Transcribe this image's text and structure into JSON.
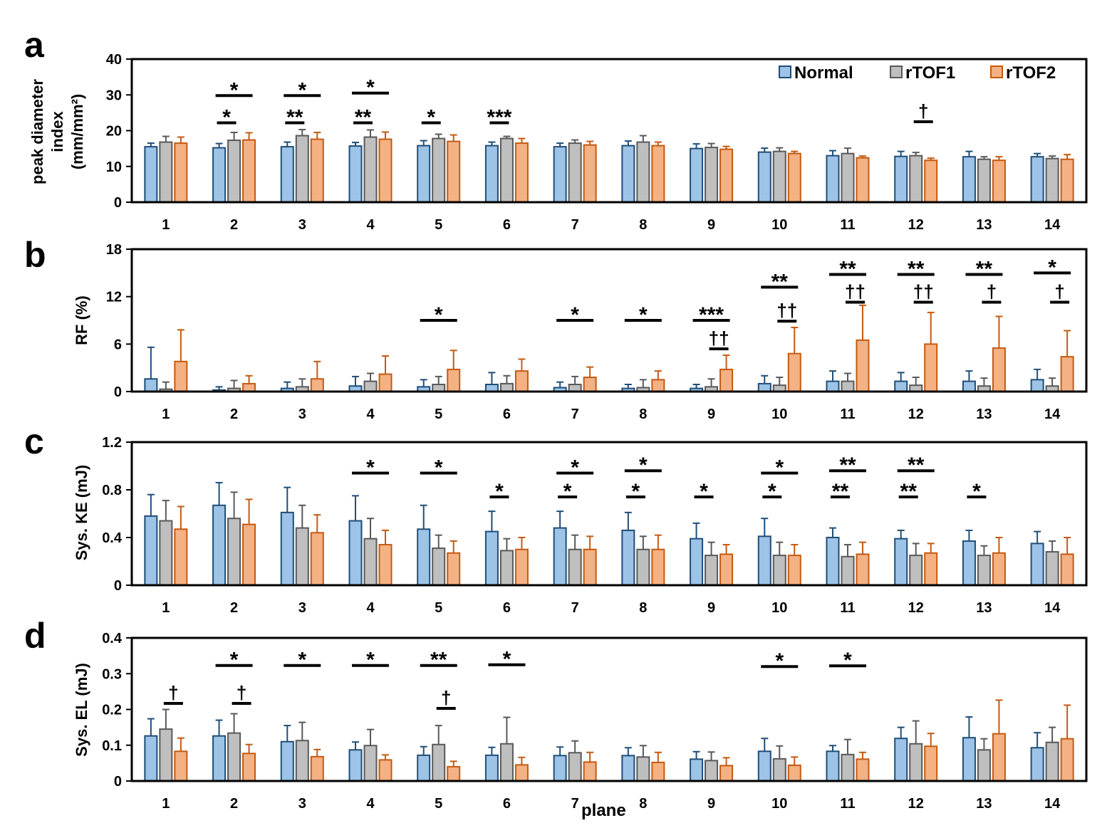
{
  "legend": [
    {
      "name": "Normal",
      "fill": "#9DC3E6",
      "stroke": "#1F4E79"
    },
    {
      "name": "rTOF1",
      "fill": "#BFBFBF",
      "stroke": "#595959"
    },
    {
      "name": "rTOF2",
      "fill": "#F4B183",
      "stroke": "#C55A11"
    }
  ],
  "x_title": "plane",
  "chart_data": [
    {
      "type": "bar",
      "panel_label": "a",
      "ylabel": [
        "peak diameter",
        "index",
        "(mm/mm²)"
      ],
      "ylim": [
        0,
        40
      ],
      "yticks": [
        "0",
        "10",
        "20",
        "30",
        "40"
      ],
      "categories": [
        "1",
        "2",
        "3",
        "4",
        "5",
        "6",
        "7",
        "8",
        "9",
        "10",
        "11",
        "12",
        "13",
        "14"
      ],
      "series": [
        {
          "name": "Normal",
          "values": [
            15.5,
            15.2,
            15.5,
            15.7,
            15.8,
            15.8,
            15.5,
            15.8,
            15.0,
            14.0,
            13.0,
            12.8,
            12.7,
            12.7
          ],
          "errors": [
            1.0,
            1.2,
            1.3,
            1.0,
            1.4,
            1.0,
            1.0,
            1.3,
            1.3,
            1.1,
            1.4,
            1.4,
            1.5,
            0.9
          ]
        },
        {
          "name": "rTOF1",
          "values": [
            16.8,
            17.3,
            18.6,
            18.2,
            17.8,
            17.8,
            16.5,
            16.8,
            15.3,
            14.2,
            13.6,
            13.0,
            12.0,
            12.2
          ],
          "errors": [
            1.6,
            2.2,
            1.7,
            2.0,
            1.2,
            0.6,
            0.9,
            1.8,
            1.1,
            1.0,
            1.5,
            0.9,
            0.7,
            0.7
          ]
        },
        {
          "name": "rTOF2",
          "values": [
            16.5,
            17.4,
            17.6,
            17.6,
            17.0,
            16.5,
            16.0,
            15.8,
            14.8,
            13.6,
            12.4,
            11.7,
            11.7,
            12.0
          ],
          "errors": [
            1.7,
            2.0,
            1.9,
            2.0,
            1.8,
            1.3,
            1.0,
            1.0,
            0.8,
            0.6,
            0.5,
            0.6,
            1.0,
            1.3
          ]
        }
      ],
      "annotations": [
        {
          "plane": 2,
          "pair": "N-2",
          "mark": "*",
          "y": 29.8
        },
        {
          "plane": 3,
          "pair": "N-2",
          "mark": "*",
          "y": 29.8
        },
        {
          "plane": 4,
          "pair": "N-2",
          "mark": "*",
          "y": 30.5
        },
        {
          "plane": 2,
          "pair": "N-1",
          "mark": "*",
          "y": 22.2
        },
        {
          "plane": 3,
          "pair": "N-1",
          "mark": "**",
          "y": 22.2
        },
        {
          "plane": 4,
          "pair": "N-1",
          "mark": "**",
          "y": 22.2
        },
        {
          "plane": 5,
          "pair": "N-1",
          "mark": "*",
          "y": 22.2
        },
        {
          "plane": 6,
          "pair": "N-1",
          "mark": "***",
          "y": 22.2
        },
        {
          "plane": 12,
          "pair": "1-2",
          "mark": "†",
          "y": 22.5
        }
      ]
    },
    {
      "type": "bar",
      "panel_label": "b",
      "ylabel": [
        "RF (%)"
      ],
      "ylim": [
        0,
        18
      ],
      "yticks": [
        "0",
        "6",
        "12",
        "18"
      ],
      "categories": [
        "1",
        "2",
        "3",
        "4",
        "5",
        "6",
        "7",
        "8",
        "9",
        "10",
        "11",
        "12",
        "13",
        "14"
      ],
      "series": [
        {
          "name": "Normal",
          "values": [
            1.6,
            0.2,
            0.4,
            0.7,
            0.6,
            0.9,
            0.5,
            0.4,
            0.4,
            1.0,
            1.3,
            1.3,
            1.3,
            1.5
          ],
          "errors": [
            4.0,
            0.4,
            0.8,
            1.2,
            0.9,
            1.5,
            0.7,
            0.5,
            0.5,
            1.0,
            1.3,
            1.1,
            1.3,
            1.3
          ]
        },
        {
          "name": "rTOF1",
          "values": [
            0.3,
            0.4,
            0.6,
            1.3,
            0.9,
            1.0,
            0.9,
            0.5,
            0.6,
            0.8,
            1.3,
            0.8,
            0.7,
            0.7
          ],
          "errors": [
            0.9,
            1.0,
            1.0,
            1.0,
            1.0,
            1.0,
            1.0,
            1.0,
            1.0,
            1.0,
            1.0,
            1.0,
            1.0,
            1.0
          ]
        },
        {
          "name": "rTOF2",
          "values": [
            3.8,
            1.0,
            1.6,
            2.2,
            2.8,
            2.6,
            1.8,
            1.5,
            2.8,
            4.8,
            6.5,
            6.0,
            5.5,
            4.4
          ],
          "errors": [
            4.0,
            1.0,
            2.2,
            2.3,
            2.4,
            1.5,
            1.3,
            1.1,
            1.8,
            3.3,
            4.4,
            4.0,
            4.0,
            3.3
          ]
        }
      ],
      "annotations": [
        {
          "plane": 5,
          "pair": "N-2",
          "mark": "*",
          "y": 9.0
        },
        {
          "plane": 7,
          "pair": "N-2",
          "mark": "*",
          "y": 9.0
        },
        {
          "plane": 8,
          "pair": "N-2",
          "mark": "*",
          "y": 9.0
        },
        {
          "plane": 9,
          "pair": "N-2",
          "mark": "***",
          "y": 9.0
        },
        {
          "plane": 10,
          "pair": "N-2",
          "mark": "**",
          "y": 13.2
        },
        {
          "plane": 11,
          "pair": "N-2",
          "mark": "**",
          "y": 14.8
        },
        {
          "plane": 12,
          "pair": "N-2",
          "mark": "**",
          "y": 14.8
        },
        {
          "plane": 13,
          "pair": "N-2",
          "mark": "**",
          "y": 14.8
        },
        {
          "plane": 14,
          "pair": "N-2",
          "mark": "*",
          "y": 15.0
        },
        {
          "plane": 9,
          "pair": "1-2",
          "mark": "††",
          "y": 5.4
        },
        {
          "plane": 10,
          "pair": "1-2",
          "mark": "††",
          "y": 8.9
        },
        {
          "plane": 11,
          "pair": "1-2",
          "mark": "††",
          "y": 11.3
        },
        {
          "plane": 12,
          "pair": "1-2",
          "mark": "††",
          "y": 11.3
        },
        {
          "plane": 13,
          "pair": "1-2",
          "mark": "†",
          "y": 11.3
        },
        {
          "plane": 14,
          "pair": "1-2",
          "mark": "†",
          "y": 11.3
        }
      ]
    },
    {
      "type": "bar",
      "panel_label": "c",
      "ylabel": [
        "Sys. KE (mJ)"
      ],
      "ylim": [
        0,
        1.2
      ],
      "yticks": [
        "0",
        "0.4",
        "0.8",
        "1.2"
      ],
      "categories": [
        "1",
        "2",
        "3",
        "4",
        "5",
        "6",
        "7",
        "8",
        "9",
        "10",
        "11",
        "12",
        "13",
        "14"
      ],
      "series": [
        {
          "name": "Normal",
          "values": [
            0.58,
            0.67,
            0.61,
            0.54,
            0.47,
            0.45,
            0.48,
            0.46,
            0.39,
            0.41,
            0.4,
            0.39,
            0.37,
            0.35
          ],
          "errors": [
            0.18,
            0.19,
            0.21,
            0.21,
            0.2,
            0.17,
            0.14,
            0.15,
            0.13,
            0.15,
            0.08,
            0.07,
            0.09,
            0.1
          ]
        },
        {
          "name": "rTOF1",
          "values": [
            0.54,
            0.56,
            0.48,
            0.39,
            0.31,
            0.29,
            0.3,
            0.3,
            0.25,
            0.25,
            0.24,
            0.25,
            0.25,
            0.28
          ],
          "errors": [
            0.17,
            0.22,
            0.19,
            0.17,
            0.11,
            0.1,
            0.12,
            0.11,
            0.11,
            0.11,
            0.1,
            0.1,
            0.08,
            0.09
          ]
        },
        {
          "name": "rTOF2",
          "values": [
            0.47,
            0.51,
            0.44,
            0.34,
            0.27,
            0.3,
            0.3,
            0.3,
            0.26,
            0.25,
            0.26,
            0.27,
            0.27,
            0.26
          ],
          "errors": [
            0.19,
            0.21,
            0.15,
            0.12,
            0.1,
            0.1,
            0.11,
            0.12,
            0.08,
            0.09,
            0.1,
            0.08,
            0.13,
            0.14
          ]
        }
      ],
      "annotations": [
        {
          "plane": 4,
          "pair": "N-2",
          "mark": "*",
          "y": 0.94
        },
        {
          "plane": 5,
          "pair": "N-2",
          "mark": "*",
          "y": 0.94
        },
        {
          "plane": 7,
          "pair": "N-2",
          "mark": "*",
          "y": 0.94
        },
        {
          "plane": 8,
          "pair": "N-2",
          "mark": "*",
          "y": 0.96
        },
        {
          "plane": 10,
          "pair": "N-2",
          "mark": "*",
          "y": 0.94
        },
        {
          "plane": 11,
          "pair": "N-2",
          "mark": "**",
          "y": 0.96
        },
        {
          "plane": 12,
          "pair": "N-2",
          "mark": "**",
          "y": 0.96
        },
        {
          "plane": 6,
          "pair": "N-1",
          "mark": "*",
          "y": 0.74
        },
        {
          "plane": 7,
          "pair": "N-1",
          "mark": "*",
          "y": 0.74
        },
        {
          "plane": 8,
          "pair": "N-1",
          "mark": "*",
          "y": 0.74
        },
        {
          "plane": 9,
          "pair": "N-1",
          "mark": "*",
          "y": 0.74
        },
        {
          "plane": 10,
          "pair": "N-1",
          "mark": "*",
          "y": 0.74
        },
        {
          "plane": 11,
          "pair": "N-1",
          "mark": "**",
          "y": 0.74
        },
        {
          "plane": 12,
          "pair": "N-1",
          "mark": "**",
          "y": 0.74
        },
        {
          "plane": 13,
          "pair": "N-1",
          "mark": "*",
          "y": 0.74
        }
      ]
    },
    {
      "type": "bar",
      "panel_label": "d",
      "ylabel": [
        "Sys. EL (mJ)"
      ],
      "ylim": [
        0,
        0.4
      ],
      "yticks": [
        "0",
        "0.1",
        "0.2",
        "0.3",
        "0.4"
      ],
      "categories": [
        "1",
        "2",
        "3",
        "4",
        "5",
        "6",
        "7",
        "8",
        "9",
        "10",
        "11",
        "12",
        "13",
        "14"
      ],
      "series": [
        {
          "name": "Normal",
          "values": [
            0.126,
            0.126,
            0.11,
            0.087,
            0.072,
            0.072,
            0.071,
            0.071,
            0.061,
            0.083,
            0.083,
            0.119,
            0.121,
            0.093
          ],
          "errors": [
            0.048,
            0.044,
            0.045,
            0.022,
            0.024,
            0.022,
            0.024,
            0.022,
            0.021,
            0.036,
            0.016,
            0.031,
            0.058,
            0.042
          ]
        },
        {
          "name": "rTOF1",
          "values": [
            0.145,
            0.134,
            0.113,
            0.099,
            0.102,
            0.104,
            0.079,
            0.067,
            0.057,
            0.062,
            0.074,
            0.104,
            0.087,
            0.108
          ],
          "errors": [
            0.055,
            0.054,
            0.051,
            0.045,
            0.053,
            0.074,
            0.033,
            0.032,
            0.024,
            0.036,
            0.042,
            0.064,
            0.031,
            0.042
          ]
        },
        {
          "name": "rTOF2",
          "values": [
            0.083,
            0.077,
            0.068,
            0.059,
            0.04,
            0.045,
            0.053,
            0.052,
            0.043,
            0.044,
            0.061,
            0.097,
            0.132,
            0.118
          ],
          "errors": [
            0.037,
            0.025,
            0.02,
            0.014,
            0.015,
            0.021,
            0.027,
            0.028,
            0.022,
            0.023,
            0.019,
            0.036,
            0.094,
            0.094
          ]
        }
      ],
      "annotations": [
        {
          "plane": 2,
          "pair": "N-2",
          "mark": "*",
          "y": 0.323
        },
        {
          "plane": 3,
          "pair": "N-2",
          "mark": "*",
          "y": 0.323
        },
        {
          "plane": 4,
          "pair": "N-2",
          "mark": "*",
          "y": 0.323
        },
        {
          "plane": 5,
          "pair": "N-2",
          "mark": "**",
          "y": 0.323
        },
        {
          "plane": 6,
          "pair": "N-2",
          "mark": "*",
          "y": 0.325
        },
        {
          "plane": 10,
          "pair": "N-2",
          "mark": "*",
          "y": 0.32
        },
        {
          "plane": 11,
          "pair": "N-2",
          "mark": "*",
          "y": 0.322
        },
        {
          "plane": 1,
          "pair": "1-2",
          "mark": "†",
          "y": 0.217
        },
        {
          "plane": 2,
          "pair": "1-2",
          "mark": "†",
          "y": 0.217
        },
        {
          "plane": 5,
          "pair": "1-2",
          "mark": "†",
          "y": 0.203
        }
      ]
    }
  ]
}
